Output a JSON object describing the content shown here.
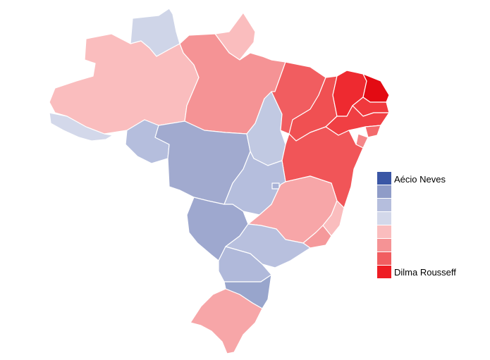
{
  "legend": {
    "top_label": "Aécio Neves",
    "bottom_label": "Dilma Rousseff",
    "scale_colors": [
      "#3a56a5",
      "#8f9cc8",
      "#b5bedd",
      "#d3d8ea",
      "#fabdbe",
      "#f59395",
      "#f15d60",
      "#ee1c23"
    ]
  },
  "states": [
    {
      "code": "AM",
      "color": "#fabdbe"
    },
    {
      "code": "RR",
      "color": "#cfd5e8"
    },
    {
      "code": "AP",
      "color": "#fabdbe"
    },
    {
      "code": "PA",
      "color": "#f59395"
    },
    {
      "code": "AC",
      "color": "#d3d8ea"
    },
    {
      "code": "RO",
      "color": "#b5bedd"
    },
    {
      "code": "MT",
      "color": "#a1aacf"
    },
    {
      "code": "TO",
      "color": "#c1c9e2"
    },
    {
      "code": "MA",
      "color": "#f15d60"
    },
    {
      "code": "PI",
      "color": "#f05052"
    },
    {
      "code": "CE",
      "color": "#ee2a30"
    },
    {
      "code": "RN",
      "color": "#e30b13"
    },
    {
      "code": "PB",
      "color": "#f0393d"
    },
    {
      "code": "PE",
      "color": "#f03f43"
    },
    {
      "code": "AL",
      "color": "#f36a6c"
    },
    {
      "code": "SE",
      "color": "#f58789"
    },
    {
      "code": "BA",
      "color": "#f15558"
    },
    {
      "code": "GO",
      "color": "#b5bedd"
    },
    {
      "code": "DF",
      "color": "#a8b2d6"
    },
    {
      "code": "MG",
      "color": "#f7a6a8"
    },
    {
      "code": "ES",
      "color": "#fabdbe"
    },
    {
      "code": "RJ",
      "color": "#f5999b"
    },
    {
      "code": "MS",
      "color": "#9ea8cf"
    },
    {
      "code": "SP",
      "color": "#b8c0de"
    },
    {
      "code": "PR",
      "color": "#b0b9da"
    },
    {
      "code": "SC",
      "color": "#98a5cc"
    },
    {
      "code": "RS",
      "color": "#f7a6a8"
    }
  ]
}
